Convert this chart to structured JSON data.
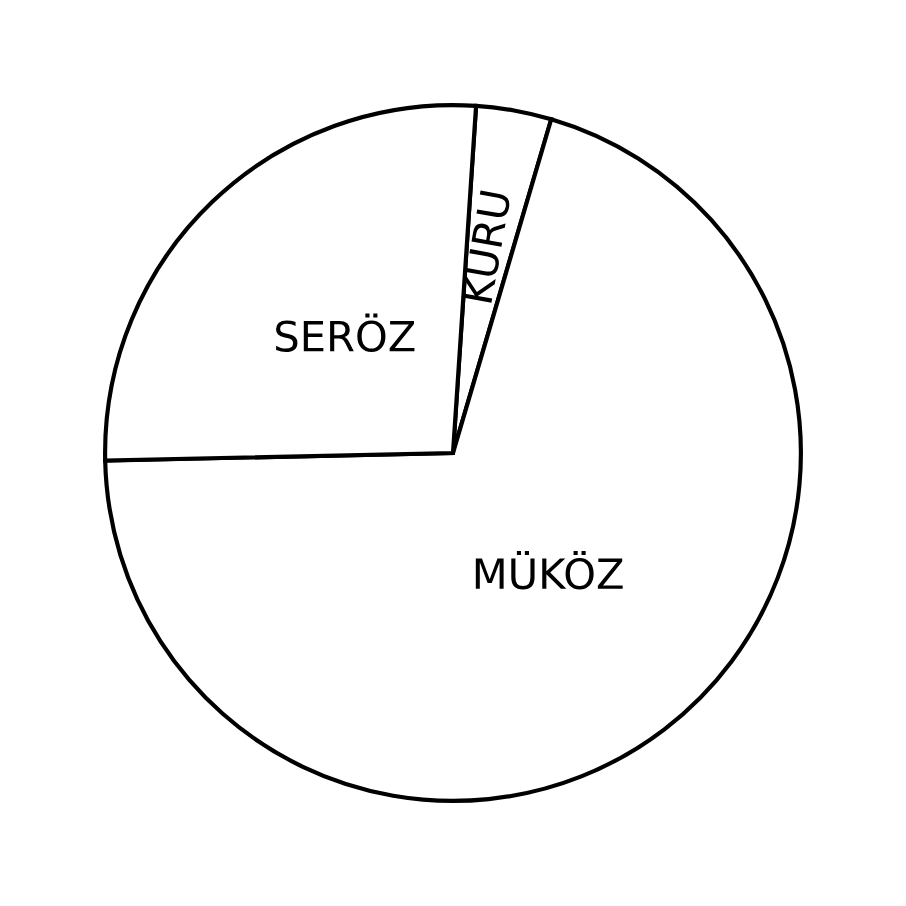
{
  "chart_data": {
    "type": "pie",
    "categories": [
      "KURU",
      "MÜKÖZ",
      "SERÖZ"
    ],
    "values": [
      3.5,
      70.1,
      26.4
    ],
    "colors": [
      "#ffffff",
      "#ffffff",
      "#ffffff"
    ]
  }
}
